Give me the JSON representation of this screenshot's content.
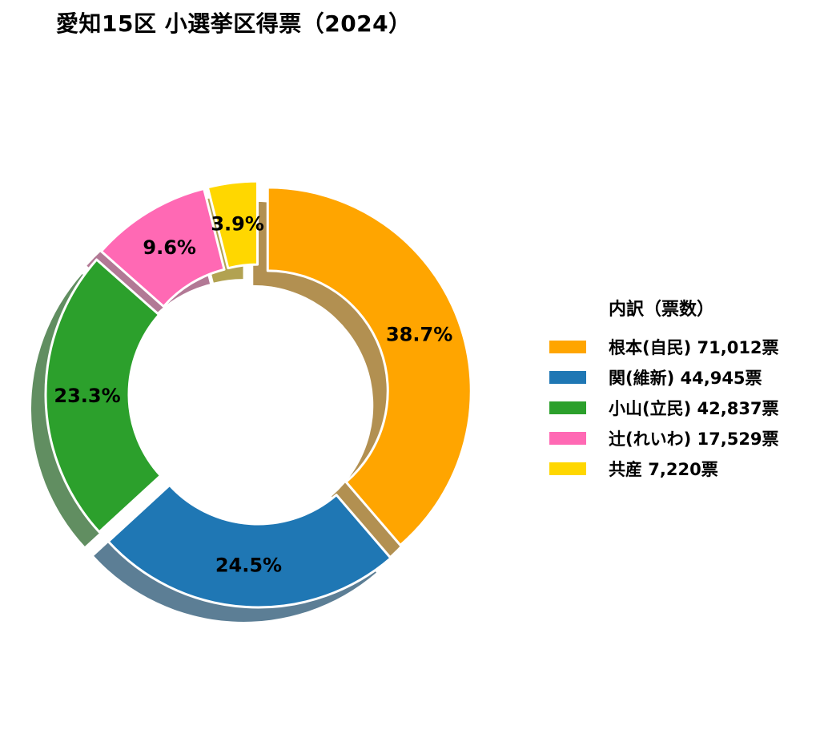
{
  "title": "愛知15区 小選挙区得票（2024）",
  "legend": {
    "title": "内訳（票数）",
    "items": [
      {
        "label": "根本(自民)  71,012票"
      },
      {
        "label": "関(維新)  44,945票"
      },
      {
        "label": "小山(立民)  42,837票"
      },
      {
        "label": "辻(れいわ)  17,529票"
      },
      {
        "label": "共産  7,220票"
      }
    ]
  },
  "chart_data": {
    "type": "pie",
    "variant": "donut",
    "title": "愛知15区 小選挙区得票（2024）",
    "legend_title": "内訳（票数）",
    "legend_position": "right",
    "slices": [
      {
        "name": "根本(自民)",
        "value": 71012,
        "pct_label": "38.7%",
        "color": "#FFA500"
      },
      {
        "name": "関(維新)",
        "value": 44945,
        "pct_label": "24.5%",
        "color": "#1F77B4"
      },
      {
        "name": "小山(立民)",
        "value": 42837,
        "pct_label": "23.3%",
        "color": "#2CA02C"
      },
      {
        "name": "辻(れいわ)",
        "value": 17529,
        "pct_label": "9.6%",
        "color": "#FF69B4"
      },
      {
        "name": "共産",
        "value": 7220,
        "pct_label": "3.9%",
        "color": "#FFD700"
      }
    ],
    "start_angle_deg": 90,
    "direction": "clockwise",
    "exploded": true,
    "shadow": true
  }
}
